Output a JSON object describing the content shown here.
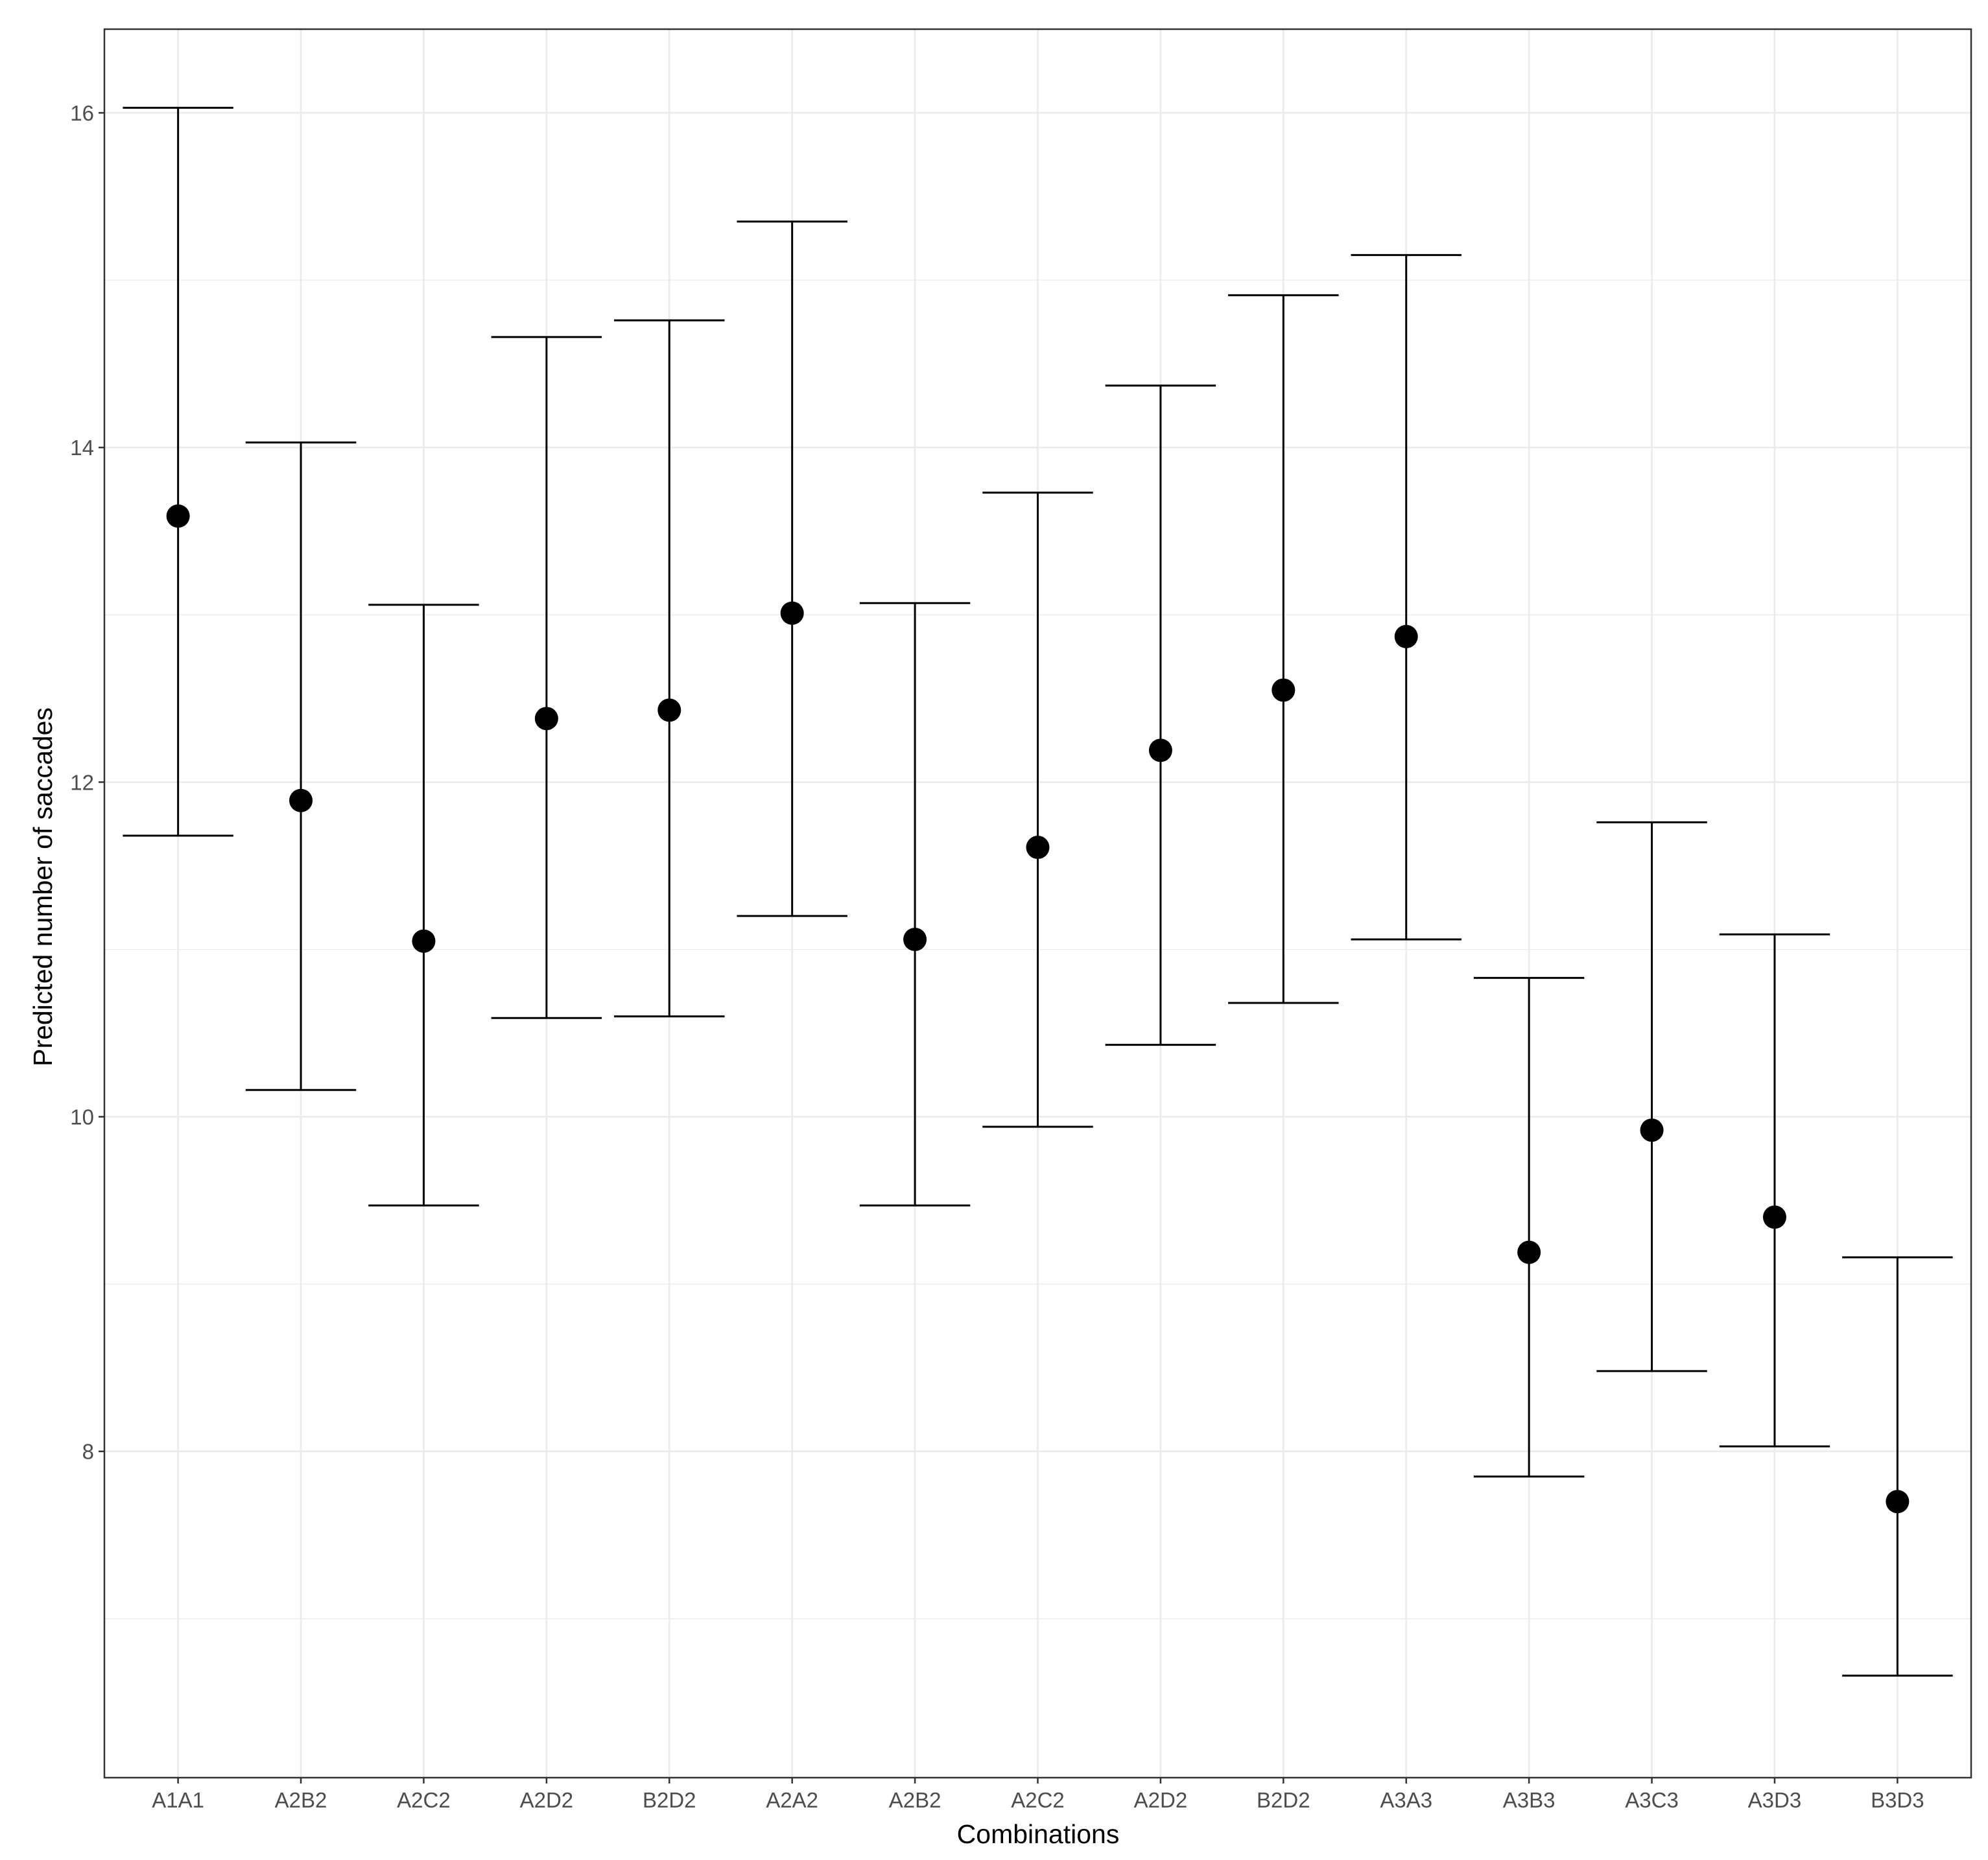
{
  "chart_data": {
    "type": "scatter",
    "title": "",
    "xlabel": "Combinations",
    "ylabel": "Predicted number of saccades",
    "ylim": [
      6.05,
      16.5
    ],
    "yticks": [
      8,
      10,
      12,
      14,
      16
    ],
    "grid": true,
    "legend": "none",
    "categories": [
      "A1A1",
      "A2B2",
      "A2C2",
      "A2D2",
      "B2D2",
      "A2A2",
      "A2B2",
      "A2C2",
      "A2D2",
      "B2D2",
      "A3A3",
      "A3B3",
      "A3C3",
      "A3D3",
      "B3D3"
    ],
    "series": [
      {
        "values": [
          13.59,
          11.89,
          11.05,
          12.38,
          12.43,
          13.01,
          11.06,
          11.61,
          12.19,
          12.55,
          12.87,
          9.19,
          9.92,
          9.4,
          7.7
        ],
        "lower": [
          11.68,
          10.16,
          9.47,
          10.59,
          10.6,
          11.2,
          9.47,
          9.94,
          10.43,
          10.68,
          11.06,
          7.85,
          8.48,
          8.03,
          6.66
        ],
        "upper": [
          16.03,
          14.03,
          13.06,
          14.66,
          14.76,
          15.35,
          13.07,
          13.73,
          14.37,
          14.91,
          15.15,
          10.83,
          11.76,
          11.09,
          9.16
        ]
      }
    ],
    "colors": {
      "panel_border": "#333333",
      "grid": "#ebebeb",
      "marks": "#000000"
    }
  }
}
